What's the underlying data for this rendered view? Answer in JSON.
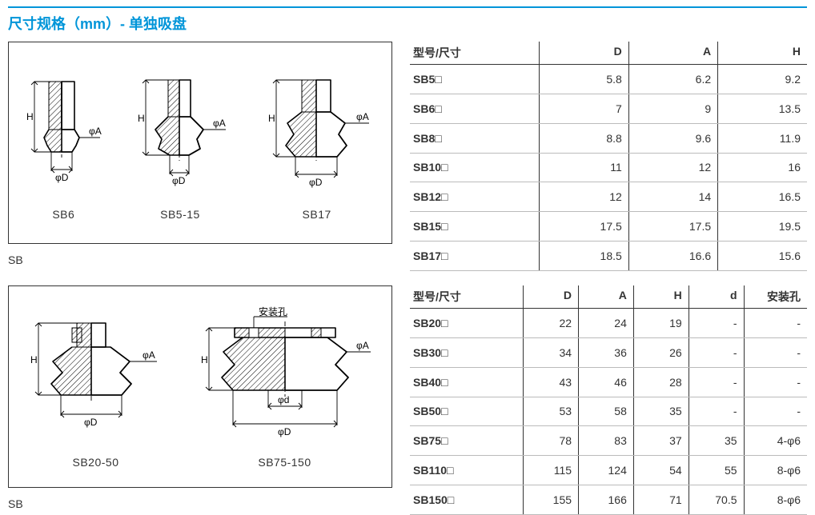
{
  "title": "尺寸规格（mm）- 单独吸盘",
  "series_caption": "SB",
  "diagrams1": {
    "d1_label": "SB6",
    "d2_label": "SB5-15",
    "d3_label": "SB17",
    "phiA": "φA",
    "phiD": "φD",
    "H": "H"
  },
  "diagrams2": {
    "d1_label": "SB20-50",
    "d2_label": "SB75-150",
    "mount_hole": "安装孔",
    "phiA": "φA",
    "phiD": "φD",
    "phid": "φd",
    "H": "H"
  },
  "table1": {
    "headers": [
      "型号/尺寸",
      "D",
      "A",
      "H"
    ],
    "rows": [
      [
        "SB5□",
        "5.8",
        "6.2",
        "9.2"
      ],
      [
        "SB6□",
        "7",
        "9",
        "13.5"
      ],
      [
        "SB8□",
        "8.8",
        "9.6",
        "11.9"
      ],
      [
        "SB10□",
        "11",
        "12",
        "16"
      ],
      [
        "SB12□",
        "12",
        "14",
        "16.5"
      ],
      [
        "SB15□",
        "17.5",
        "17.5",
        "19.5"
      ],
      [
        "SB17□",
        "18.5",
        "16.6",
        "15.6"
      ]
    ],
    "col_widths": [
      "160px",
      "110px",
      "110px",
      "110px"
    ]
  },
  "table2": {
    "headers": [
      "型号/尺寸",
      "D",
      "A",
      "H",
      "d",
      "安装孔"
    ],
    "rows": [
      [
        "SB20□",
        "22",
        "24",
        "19",
        "-",
        "-"
      ],
      [
        "SB30□",
        "34",
        "36",
        "26",
        "-",
        "-"
      ],
      [
        "SB40□",
        "43",
        "46",
        "28",
        "-",
        "-"
      ],
      [
        "SB50□",
        "53",
        "58",
        "35",
        "-",
        "-"
      ],
      [
        "SB75□",
        "78",
        "83",
        "37",
        "35",
        "4-φ6"
      ],
      [
        "SB110□",
        "115",
        "124",
        "54",
        "55",
        "8-φ6"
      ],
      [
        "SB150□",
        "155",
        "166",
        "71",
        "70.5",
        "8-φ6"
      ]
    ],
    "col_widths": [
      "140px",
      "68px",
      "68px",
      "68px",
      "68px",
      "78px"
    ]
  },
  "colors": {
    "accent": "#0095d9",
    "rule": "#333333",
    "text": "#333333"
  }
}
